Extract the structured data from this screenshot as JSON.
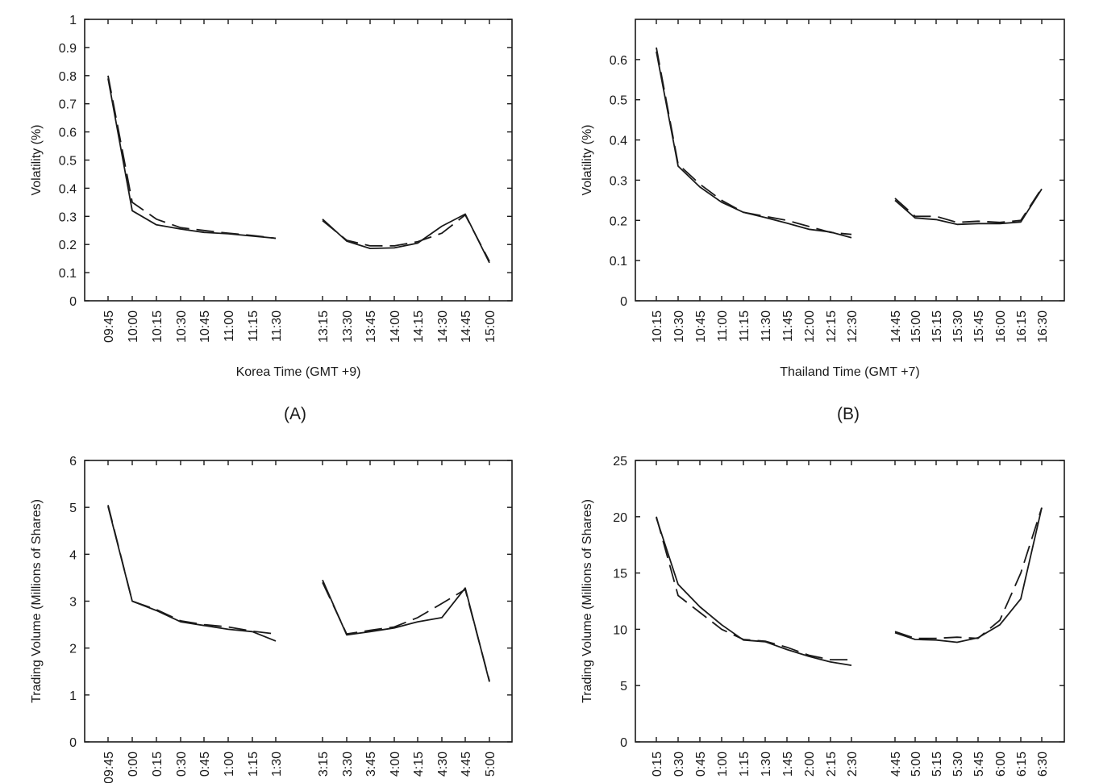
{
  "chart_data": [
    {
      "type": "line",
      "panel_label": "(A)",
      "xlabel": "Korea Time (GMT +9)",
      "ylabel": "Volatility (%)",
      "ylim": [
        0,
        1
      ],
      "yticks": [
        "0",
        "0.1",
        "0.2",
        "0.3",
        "0.4",
        "0.5",
        "0.6",
        "0.7",
        "0.8",
        "0.9",
        "1"
      ],
      "categories": [
        "09:45",
        "10:00",
        "10:15",
        "10:30",
        "10:45",
        "11:00",
        "11:15",
        "11:30",
        "",
        "13:15",
        "13:30",
        "13:45",
        "14:00",
        "14:15",
        "14:30",
        "14:45",
        "15:00"
      ],
      "grid": false,
      "series": [
        {
          "style": "solid",
          "values": [
            0.79,
            0.32,
            0.27,
            0.255,
            0.243,
            0.238,
            0.23,
            0.222,
            null,
            0.29,
            0.212,
            0.186,
            0.188,
            0.205,
            0.265,
            0.308,
            0.135
          ]
        },
        {
          "style": "dashed",
          "values": [
            0.8,
            0.35,
            0.29,
            0.26,
            0.25,
            0.24,
            0.232,
            0.222,
            null,
            0.285,
            0.215,
            0.195,
            0.195,
            0.21,
            0.24,
            0.305,
            0.14
          ]
        }
      ]
    },
    {
      "type": "line",
      "panel_label": "(B)",
      "xlabel": "Thailand Time (GMT +7)",
      "ylabel": "Volatility (%)",
      "ylim": [
        0,
        0.7
      ],
      "yticks": [
        "0",
        "0.1",
        "0.2",
        "0.3",
        "0.4",
        "0.5",
        "0.6"
      ],
      "categories": [
        "10:15",
        "10:30",
        "10:45",
        "11:00",
        "11:15",
        "11:30",
        "11:45",
        "12:00",
        "12:15",
        "12:30",
        "",
        "14:45",
        "15:00",
        "15:15",
        "15:30",
        "15:45",
        "16:00",
        "16:15",
        "16:30"
      ],
      "grid": false,
      "series": [
        {
          "style": "solid",
          "values": [
            0.62,
            0.335,
            0.283,
            0.245,
            0.22,
            0.207,
            0.193,
            0.178,
            0.171,
            0.157,
            null,
            0.25,
            0.206,
            0.202,
            0.19,
            0.192,
            0.192,
            0.196,
            0.278
          ]
        },
        {
          "style": "dashed",
          "values": [
            0.63,
            0.34,
            0.29,
            0.25,
            0.22,
            0.21,
            0.2,
            0.185,
            0.17,
            0.165,
            null,
            0.255,
            0.21,
            0.21,
            0.195,
            0.198,
            0.195,
            0.2,
            0.28
          ]
        }
      ]
    },
    {
      "type": "line",
      "ylabel": "Trading Volume (Millions of Shares)",
      "ylim": [
        0,
        6
      ],
      "yticks": [
        "0",
        "1",
        "2",
        "3",
        "4",
        "5",
        "6"
      ],
      "categories": [
        "09:45",
        "0:00",
        "0:15",
        "0:30",
        "0:45",
        "1:00",
        "1:15",
        "1:30",
        "",
        "3:15",
        "3:30",
        "3:45",
        "4:00",
        "4:15",
        "4:30",
        "4:45",
        "5:00"
      ],
      "grid": false,
      "series": [
        {
          "style": "solid",
          "values": [
            5.02,
            3.0,
            2.8,
            2.56,
            2.48,
            2.4,
            2.35,
            2.15,
            null,
            3.45,
            2.28,
            2.35,
            2.43,
            2.56,
            2.65,
            3.28,
            1.28
          ]
        },
        {
          "style": "dashed",
          "values": [
            5.05,
            3.0,
            2.82,
            2.58,
            2.5,
            2.45,
            2.36,
            2.3,
            null,
            3.4,
            2.3,
            2.38,
            2.45,
            2.65,
            2.95,
            3.25,
            1.3
          ]
        }
      ]
    },
    {
      "type": "line",
      "ylabel": "Trading Volume (Millions of Shares)",
      "ylim": [
        0,
        25
      ],
      "yticks": [
        "0",
        "5",
        "10",
        "15",
        "20",
        "25"
      ],
      "categories": [
        "0:15",
        "0:30",
        "0:45",
        "1:00",
        "1:15",
        "1:30",
        "1:45",
        "2:00",
        "2:15",
        "2:30",
        "",
        "4:45",
        "5:00",
        "5:15",
        "5:30",
        "5:45",
        "6:00",
        "6:15",
        "6:30"
      ],
      "grid": false,
      "series": [
        {
          "style": "solid",
          "values": [
            19.9,
            14.0,
            12.0,
            10.4,
            9.05,
            8.9,
            8.2,
            7.6,
            7.1,
            6.8,
            null,
            9.7,
            9.1,
            9.05,
            8.85,
            9.25,
            10.4,
            12.7,
            20.8
          ]
        },
        {
          "style": "dashed",
          "values": [
            20.0,
            13.0,
            11.5,
            10.0,
            9.1,
            8.95,
            8.4,
            7.7,
            7.3,
            7.3,
            null,
            9.8,
            9.2,
            9.2,
            9.3,
            9.2,
            10.8,
            15.0,
            20.8
          ]
        }
      ]
    }
  ]
}
